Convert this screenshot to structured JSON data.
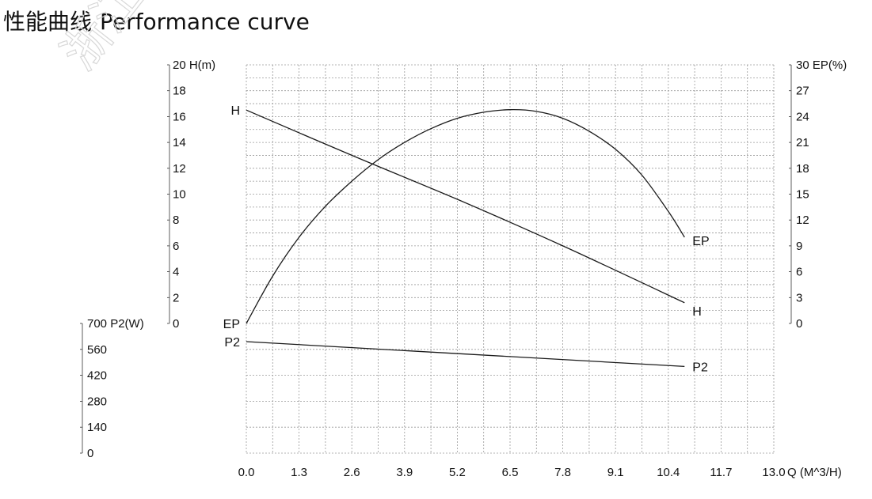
{
  "title": {
    "zh": "性能曲线",
    "en": "Performance curve"
  },
  "watermark": {
    "text": "浙江"
  },
  "chart_data": {
    "type": "line",
    "grid": true,
    "x_axis": {
      "label": "Q (M^3/H)",
      "ticks": [
        "0.0",
        "1.3",
        "2.6",
        "3.9",
        "5.2",
        "6.5",
        "7.8",
        "9.1",
        "10.4",
        "11.7",
        "13.0"
      ],
      "range": [
        0,
        13
      ]
    },
    "y_axes": [
      {
        "id": "H",
        "label": "20 H(m)",
        "range": [
          0,
          20
        ],
        "ticks": [
          "20 H(m)",
          "18",
          "16",
          "14",
          "12",
          "10",
          "8",
          "6",
          "4",
          "2",
          "0"
        ]
      },
      {
        "id": "EP",
        "label": "30 EP(%)",
        "range": [
          0,
          30
        ],
        "ticks": [
          "30 EP(%)",
          "27",
          "24",
          "21",
          "18",
          "15",
          "12",
          "9",
          "6",
          "3",
          "0"
        ]
      },
      {
        "id": "P2",
        "label": "700 P2(W)",
        "range": [
          0,
          700
        ],
        "ticks": [
          "700 P2(W)",
          "560",
          "420",
          "280",
          "140",
          "0"
        ]
      }
    ],
    "series": [
      {
        "name": "H",
        "axis": "H",
        "x": [
          0,
          2.6,
          5.2,
          7.8,
          10.8
        ],
        "y": [
          16.5,
          13.0,
          9.6,
          6.0,
          1.6
        ],
        "label_start": "H",
        "label_end": "H"
      },
      {
        "name": "EP",
        "axis": "EP",
        "x": [
          0,
          0.65,
          1.3,
          1.95,
          2.6,
          3.25,
          3.9,
          4.55,
          5.2,
          5.85,
          6.5,
          7.15,
          7.8,
          8.45,
          9.1,
          9.75,
          10.4,
          10.8
        ],
        "y": [
          0,
          5.5,
          10.0,
          13.6,
          16.5,
          19.0,
          21.0,
          22.6,
          23.8,
          24.5,
          24.8,
          24.6,
          23.8,
          22.3,
          20.2,
          17.2,
          13.0,
          10.0
        ],
        "label_start": "EP",
        "label_end": "EP"
      },
      {
        "name": "P2",
        "axis": "P2",
        "x": [
          0,
          10.8
        ],
        "y": [
          602,
          468
        ],
        "label_start": "P2",
        "label_end": "P2"
      }
    ]
  }
}
